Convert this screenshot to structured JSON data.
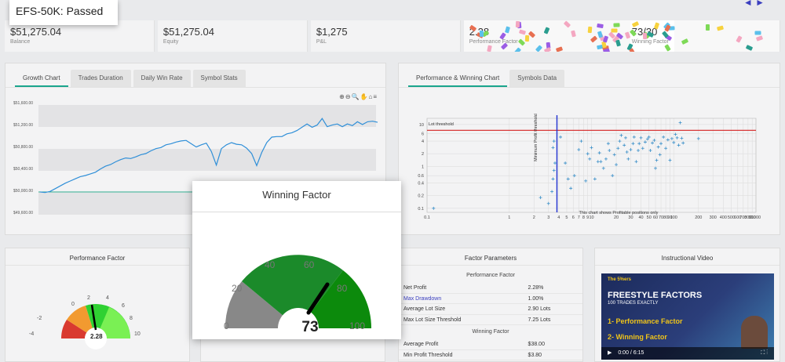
{
  "header": {
    "title": "EFS-50K: Passed"
  },
  "stats": [
    {
      "value": "$51,275.04",
      "label": "Balance"
    },
    {
      "value": "$51,275.04",
      "label": "Equity"
    },
    {
      "value": "$1,275",
      "label": "P&L"
    },
    {
      "value": "2.28",
      "label": "Performance Factor"
    },
    {
      "value": "73/30",
      "label": "Winning Factor"
    }
  ],
  "growth_panel": {
    "tabs": [
      "Growth Chart",
      "Trades Duration",
      "Daily Win Rate",
      "Symbol Stats"
    ],
    "active_tab": "Growth Chart",
    "toolbar_icons": [
      "zoom-in-icon",
      "zoom-out-icon",
      "magnify-icon",
      "pan-icon",
      "home-icon",
      "menu-icon"
    ]
  },
  "performance_panel": {
    "tabs": [
      "Performance & Winning Chart",
      "Symbols Data"
    ],
    "active_tab": "Performance & Winning Chart",
    "hline_label": "Lot threshold",
    "vline_label": "Minimum Profit threshold",
    "caption": "This chart shows Profitable positions only"
  },
  "pf_panel": {
    "title": "Performance Factor",
    "value": "2.28",
    "ticks": [
      "-4",
      "-2",
      "0",
      "2",
      "4",
      "6",
      "8",
      "10"
    ]
  },
  "factor_params": {
    "title": "Factor Parameters",
    "sections": [
      {
        "heading": "Performance Factor",
        "rows": [
          {
            "key": "Net Profit",
            "value": "2.28%",
            "link": false
          },
          {
            "key": "Max Drawdown",
            "value": "1.00%",
            "link": true
          },
          {
            "key": "Average Lot Size",
            "value": "2.90 Lots",
            "link": false
          },
          {
            "key": "Max Lot Size Threshold",
            "value": "7.25 Lots",
            "link": false
          }
        ]
      },
      {
        "heading": "Winning Factor",
        "rows": [
          {
            "key": "Average Profit",
            "value": "$38.00",
            "link": false
          },
          {
            "key": "Min Profit Threshold",
            "value": "$3.80",
            "link": false
          }
        ]
      }
    ]
  },
  "video_panel": {
    "title": "Instructional Video",
    "brand": "The 5%ers",
    "headline": "FREESTYLE FACTORS",
    "subheadline": "100 TRADES EXACTLY",
    "items": [
      "1- Performance Factor",
      "2- Winning Factor"
    ],
    "time": "0:00 / 6:15"
  },
  "modal": {
    "title": "Winning Factor",
    "value": "73",
    "ticks": [
      "0",
      "20",
      "40",
      "60",
      "80",
      "100"
    ]
  },
  "chart_data": [
    {
      "type": "line",
      "name": "Growth Chart",
      "ylabels": [
        "$51,600.00",
        "$51,200.00",
        "$50,800.00",
        "$50,400.00",
        "$50,000.00",
        "$49,600.00"
      ],
      "ylim": [
        49600,
        51600
      ],
      "baseline": 50000,
      "values": [
        50000,
        49990,
        50010,
        50060,
        50110,
        50160,
        50200,
        50240,
        50280,
        50300,
        50330,
        50360,
        50420,
        50470,
        50500,
        50550,
        50590,
        50620,
        50610,
        50640,
        50680,
        50700,
        50750,
        50790,
        50810,
        50860,
        50880,
        50910,
        50930,
        50940,
        50880,
        50820,
        50860,
        50890,
        50740,
        50490,
        50790,
        50860,
        50900,
        50870,
        50860,
        50800,
        50700,
        50480,
        50720,
        50900,
        51000,
        51010,
        51010,
        51060,
        51080,
        51120,
        51180,
        51240,
        51180,
        51220,
        51340,
        51190,
        51220,
        51240,
        51190,
        51240,
        51210,
        51280,
        51230,
        51280,
        51290,
        51270
      ]
    },
    {
      "type": "scatter",
      "name": "Performance & Winning Chart",
      "xscale": "log",
      "yscale": "log",
      "xticks": [
        "0.1",
        "1",
        "2",
        "3",
        "4",
        "5",
        "6",
        "7",
        "8",
        "9",
        "10",
        "20",
        "30",
        "40",
        "50",
        "60",
        "70",
        "80",
        "90",
        "100",
        "200",
        "300",
        "400",
        "500",
        "600",
        "700",
        "800",
        "900",
        "1000"
      ],
      "yticks": [
        "0.1",
        "0.2",
        "0.4",
        "0.6",
        "1",
        "2",
        "4",
        "6",
        "10"
      ],
      "xlim": [
        0.1,
        1000
      ],
      "ylim": [
        0.08,
        14
      ],
      "hline": 7.25,
      "vline": 3.8,
      "points": [
        [
          0.12,
          0.1
        ],
        [
          2.4,
          0.18
        ],
        [
          3,
          0.13
        ],
        [
          3.3,
          0.25
        ],
        [
          3.4,
          0.5
        ],
        [
          3.5,
          0.8
        ],
        [
          3.4,
          2.8
        ],
        [
          3.5,
          4
        ],
        [
          3.6,
          1.2
        ],
        [
          4.2,
          5
        ],
        [
          4.8,
          1.2
        ],
        [
          5.2,
          0.5
        ],
        [
          5.6,
          0.3
        ],
        [
          6.2,
          0.6
        ],
        [
          7,
          2.5
        ],
        [
          7.5,
          4
        ],
        [
          8.5,
          0.45
        ],
        [
          9,
          2
        ],
        [
          9.5,
          1.5
        ],
        [
          10,
          2.8
        ],
        [
          11,
          0.5
        ],
        [
          12,
          1.3
        ],
        [
          12.5,
          2.1
        ],
        [
          13,
          1.3
        ],
        [
          14,
          0.9
        ],
        [
          15,
          1.5
        ],
        [
          16,
          3.5
        ],
        [
          16.5,
          2.4
        ],
        [
          18,
          0.6
        ],
        [
          19,
          1.9
        ],
        [
          20,
          1.1
        ],
        [
          21,
          2.7
        ],
        [
          22,
          4
        ],
        [
          23,
          5.5
        ],
        [
          25,
          3.2
        ],
        [
          26,
          4.8
        ],
        [
          27,
          2.2
        ],
        [
          28,
          1.5
        ],
        [
          30,
          2.5
        ],
        [
          32,
          3.5
        ],
        [
          33,
          5
        ],
        [
          35,
          1.3
        ],
        [
          37,
          2.4
        ],
        [
          38,
          3.5
        ],
        [
          40,
          4.8
        ],
        [
          42,
          2.7
        ],
        [
          45,
          3.8
        ],
        [
          48,
          4.5
        ],
        [
          50,
          5
        ],
        [
          52,
          2.4
        ],
        [
          55,
          3.6
        ],
        [
          58,
          4.2
        ],
        [
          60,
          0.9
        ],
        [
          62,
          1.4
        ],
        [
          65,
          2.9
        ],
        [
          68,
          1.9
        ],
        [
          70,
          3.5
        ],
        [
          75,
          5
        ],
        [
          80,
          2.7
        ],
        [
          85,
          4.3
        ],
        [
          90,
          1.4
        ],
        [
          95,
          4.6
        ],
        [
          100,
          3.7
        ],
        [
          105,
          5.8
        ],
        [
          110,
          4.8
        ],
        [
          115,
          3.2
        ],
        [
          120,
          11
        ],
        [
          125,
          4.7
        ],
        [
          130,
          3.6
        ],
        [
          200,
          4.6
        ]
      ]
    }
  ]
}
